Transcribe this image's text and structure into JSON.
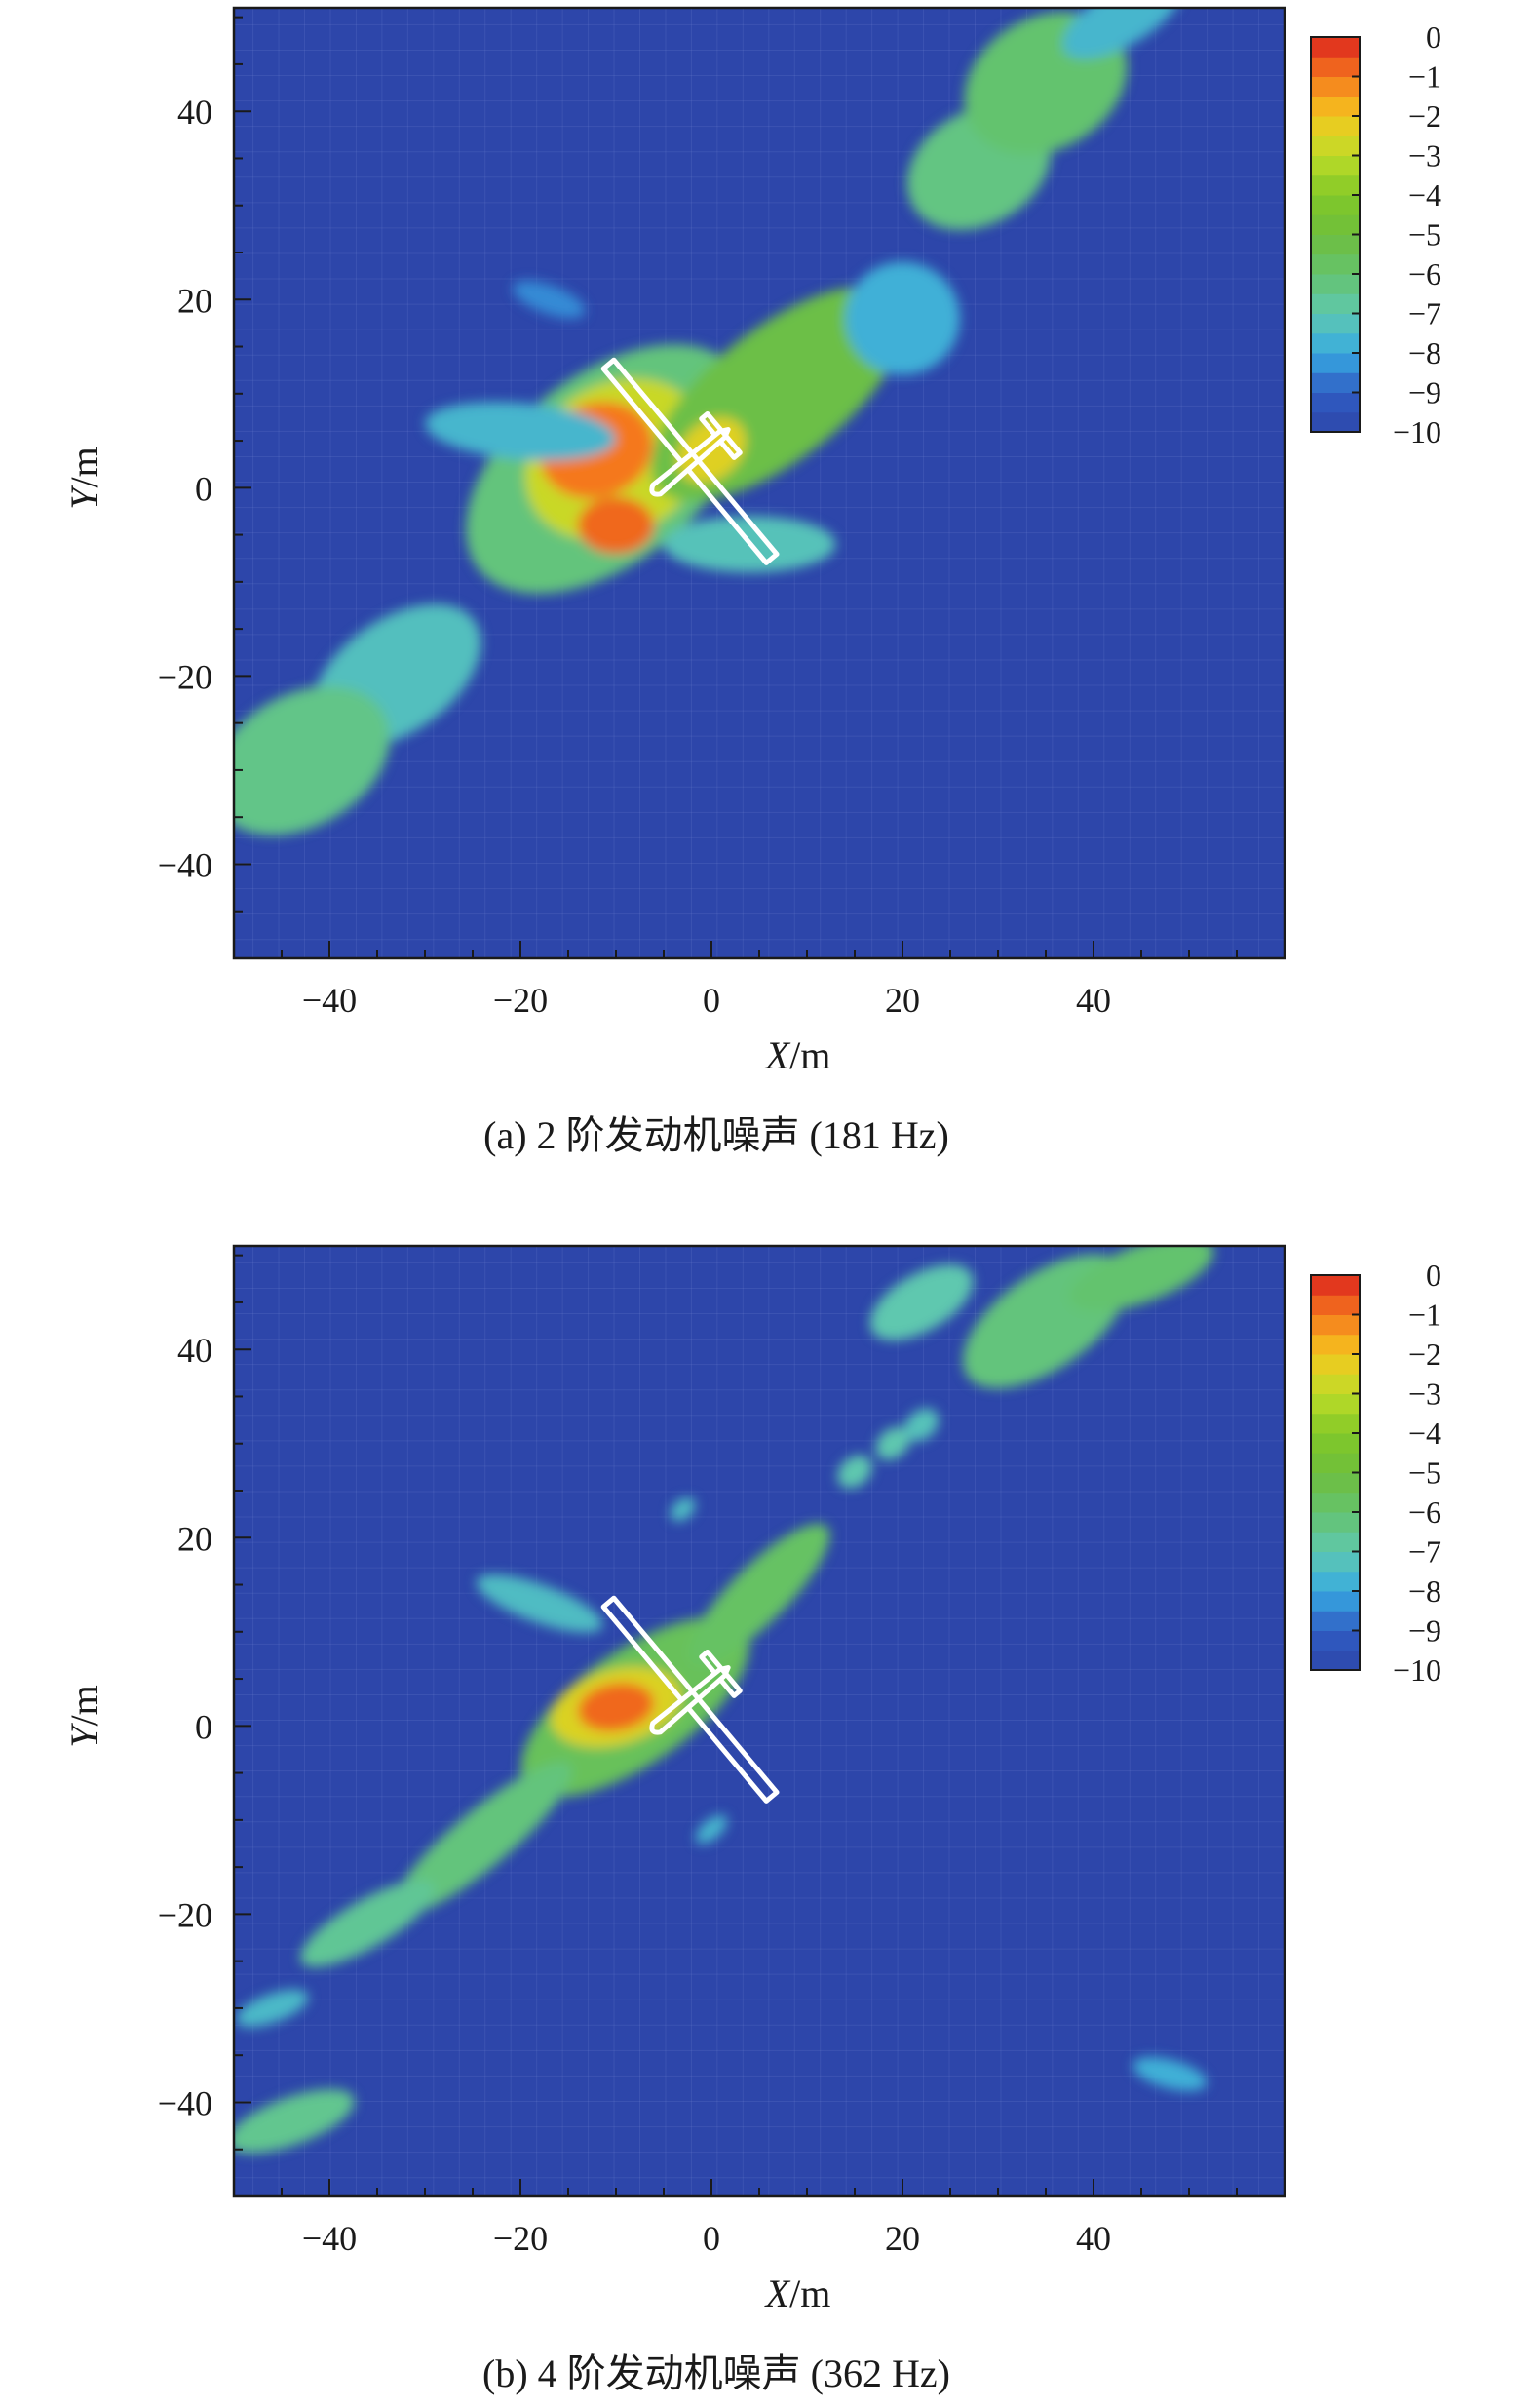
{
  "chart_data": [
    {
      "type": "heatmap",
      "caption": "(a) 2 阶发动机噪声 (181 Hz)",
      "xlabel_var": "X",
      "xlabel_unit": "/m",
      "ylabel_var": "Y",
      "ylabel_unit": "/m",
      "xlim": [
        -50,
        60
      ],
      "ylim": [
        -50,
        51
      ],
      "x_ticks": [
        -40,
        -20,
        0,
        20,
        40
      ],
      "y_ticks": [
        -40,
        -20,
        0,
        20,
        40
      ],
      "x_tick_labels": [
        "−40",
        "−20",
        "0",
        "20",
        "40"
      ],
      "y_tick_labels": [
        "−40",
        "−20",
        "0",
        "20",
        "40"
      ],
      "colorbar": {
        "min": -10,
        "max": 0,
        "ticks": [
          0,
          -1,
          -2,
          -3,
          -4,
          -5,
          -6,
          -7,
          -8,
          -9,
          -10
        ],
        "tick_labels": [
          "0",
          "−1",
          "−2",
          "−3",
          "−4",
          "−5",
          "−6",
          "−7",
          "−8",
          "−9",
          "−10"
        ]
      },
      "background_level": -10,
      "aircraft": {
        "center": [
          -2,
          3
        ],
        "heading_deg": 40
      },
      "blobs": [
        {
          "cx": -11,
          "cy": 2,
          "rx": 17,
          "ry": 10,
          "rot": 38,
          "level": -6.2
        },
        {
          "cx": -10,
          "cy": 3,
          "rx": 10,
          "ry": 8,
          "rot": 30,
          "level": -2.8
        },
        {
          "cx": -12,
          "cy": 4,
          "rx": 6,
          "ry": 5,
          "rot": 20,
          "level": -1.0
        },
        {
          "cx": -10,
          "cy": -4,
          "rx": 4,
          "ry": 3,
          "rot": 0,
          "level": -0.8
        },
        {
          "cx": 7,
          "cy": 10,
          "rx": 16,
          "ry": 7,
          "rot": 38,
          "level": -5.2
        },
        {
          "cx": 0,
          "cy": 4,
          "rx": 4,
          "ry": 3,
          "rot": 40,
          "level": -2.4
        },
        {
          "cx": -20,
          "cy": 6,
          "rx": 10,
          "ry": 3,
          "rot": -5,
          "level": -7.6
        },
        {
          "cx": 4,
          "cy": -6,
          "rx": 9,
          "ry": 3,
          "rot": 0,
          "level": -7.2
        },
        {
          "cx": -33,
          "cy": -20,
          "rx": 10,
          "ry": 6,
          "rot": 35,
          "level": -7.3
        },
        {
          "cx": -43,
          "cy": -29,
          "rx": 10,
          "ry": 7,
          "rot": 30,
          "level": -6.4
        },
        {
          "cx": 28,
          "cy": 34,
          "rx": 8,
          "ry": 6,
          "rot": 30,
          "level": -6.3
        },
        {
          "cx": 35,
          "cy": 43,
          "rx": 9,
          "ry": 7,
          "rot": 30,
          "level": -6.0
        },
        {
          "cx": 43,
          "cy": 50,
          "rx": 7,
          "ry": 3,
          "rot": 30,
          "level": -7.6
        },
        {
          "cx": 20,
          "cy": 18,
          "rx": 6,
          "ry": 6,
          "rot": 0,
          "level": -7.8
        },
        {
          "cx": -17,
          "cy": 20,
          "rx": 4,
          "ry": 1.5,
          "rot": -20,
          "level": -8.4
        }
      ]
    },
    {
      "type": "heatmap",
      "caption": "(b) 4 阶发动机噪声 (362 Hz)",
      "xlabel_var": "X",
      "xlabel_unit": "/m",
      "ylabel_var": "Y",
      "ylabel_unit": "/m",
      "xlim": [
        -50,
        60
      ],
      "ylim": [
        -50,
        51
      ],
      "x_ticks": [
        -40,
        -20,
        0,
        20,
        40
      ],
      "y_ticks": [
        -40,
        -20,
        0,
        20,
        40
      ],
      "x_tick_labels": [
        "−40",
        "−20",
        "0",
        "20",
        "40"
      ],
      "y_tick_labels": [
        "−40",
        "−20",
        "0",
        "20",
        "40"
      ],
      "colorbar": {
        "min": -10,
        "max": 0,
        "ticks": [
          0,
          -1,
          -2,
          -3,
          -4,
          -5,
          -6,
          -7,
          -8,
          -9,
          -10
        ],
        "tick_labels": [
          "0",
          "−1",
          "−2",
          "−3",
          "−4",
          "−5",
          "−6",
          "−7",
          "−8",
          "−9",
          "−10"
        ]
      },
      "background_level": -10,
      "aircraft": {
        "center": [
          -2,
          3
        ],
        "heading_deg": 40
      },
      "blobs": [
        {
          "cx": -8,
          "cy": 2,
          "rx": 14,
          "ry": 6,
          "rot": 35,
          "level": -5.6
        },
        {
          "cx": -10,
          "cy": 2,
          "rx": 7,
          "ry": 4,
          "rot": 15,
          "level": -2.5
        },
        {
          "cx": -10,
          "cy": 2,
          "rx": 4,
          "ry": 2.5,
          "rot": 10,
          "level": -0.8
        },
        {
          "cx": 5,
          "cy": 14,
          "rx": 10,
          "ry": 3,
          "rot": 45,
          "level": -5.8
        },
        {
          "cx": -24,
          "cy": -12,
          "rx": 12,
          "ry": 3,
          "rot": 40,
          "level": -6.2
        },
        {
          "cx": -36,
          "cy": -21,
          "rx": 8,
          "ry": 2.5,
          "rot": 30,
          "level": -6.6
        },
        {
          "cx": -18,
          "cy": 13,
          "rx": 7,
          "ry": 2,
          "rot": -20,
          "level": -7.4
        },
        {
          "cx": -46,
          "cy": -30,
          "rx": 4,
          "ry": 1.5,
          "rot": 20,
          "level": -7.5
        },
        {
          "cx": -44,
          "cy": -42,
          "rx": 7,
          "ry": 2.5,
          "rot": 20,
          "level": -6.5
        },
        {
          "cx": 48,
          "cy": -37,
          "rx": 4,
          "ry": 1.5,
          "rot": -15,
          "level": -7.8
        },
        {
          "cx": 15,
          "cy": 27,
          "rx": 2,
          "ry": 1.5,
          "rot": 40,
          "level": -7.0
        },
        {
          "cx": 19,
          "cy": 30,
          "rx": 2,
          "ry": 1.5,
          "rot": 40,
          "level": -7.0
        },
        {
          "cx": 22,
          "cy": 32,
          "rx": 2,
          "ry": 1.5,
          "rot": 40,
          "level": -7.2
        },
        {
          "cx": 35,
          "cy": 43,
          "rx": 10,
          "ry": 5,
          "rot": 35,
          "level": -6.2
        },
        {
          "cx": 45,
          "cy": 48,
          "rx": 8,
          "ry": 3,
          "rot": 20,
          "level": -6.0
        },
        {
          "cx": 22,
          "cy": 45,
          "rx": 6,
          "ry": 3,
          "rot": 30,
          "level": -7.0
        },
        {
          "cx": -3,
          "cy": 23,
          "rx": 1.5,
          "ry": 1,
          "rot": 40,
          "level": -7.4
        },
        {
          "cx": 0,
          "cy": -11,
          "rx": 2,
          "ry": 1,
          "rot": 40,
          "level": -7.6
        }
      ]
    }
  ]
}
